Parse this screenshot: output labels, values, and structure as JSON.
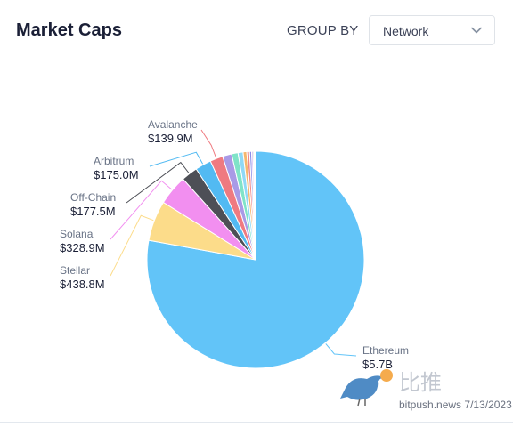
{
  "header": {
    "title": "Market Caps",
    "group_by_label": "GROUP BY",
    "group_by_value": "Network",
    "group_by_icon": "chevron-down-icon"
  },
  "chart_data": {
    "type": "pie",
    "title": "Market Caps",
    "slices": [
      {
        "label": "Ethereum",
        "value": 5700,
        "display": "$5.7B",
        "color": "#62c4f8"
      },
      {
        "label": "Stellar",
        "value": 438.8,
        "display": "$438.8M",
        "color": "#fcdc8a"
      },
      {
        "label": "Solana",
        "value": 328.9,
        "display": "$328.9M",
        "color": "#f28ff0"
      },
      {
        "label": "Off-Chain",
        "value": 177.5,
        "display": "$177.5M",
        "color": "#4d4f56"
      },
      {
        "label": "Arbitrum",
        "value": 175.0,
        "display": "$175.0M",
        "color": "#52baf2"
      },
      {
        "label": "Avalanche",
        "value": 139.9,
        "display": "$139.9M",
        "color": "#ef7a80"
      },
      {
        "label": "",
        "value": 100,
        "display": "",
        "color": "#a99ae6"
      },
      {
        "label": "",
        "value": 70,
        "display": "",
        "color": "#7fe3c8"
      },
      {
        "label": "",
        "value": 55,
        "display": "",
        "color": "#8fd8f6"
      },
      {
        "label": "",
        "value": 40,
        "display": "",
        "color": "#f6b66e"
      },
      {
        "label": "",
        "value": 30,
        "display": "",
        "color": "#f08a8a"
      },
      {
        "label": "",
        "value": 22,
        "display": "",
        "color": "#8b8fe8"
      },
      {
        "label": "",
        "value": 16,
        "display": "",
        "color": "#c79ff2"
      },
      {
        "label": "",
        "value": 12,
        "display": "",
        "color": "#9de0a8"
      },
      {
        "label": "",
        "value": 9,
        "display": "",
        "color": "#f4c58a"
      },
      {
        "label": "",
        "value": 6,
        "display": "",
        "color": "#a7b1c2"
      }
    ],
    "legend": "none",
    "labels_with_leader_lines": true
  },
  "watermark": {
    "logo_icon": "bird-logo-icon",
    "brand_text": "比推",
    "site_text": "bitpush.news",
    "date_text": "7/13/2023"
  }
}
